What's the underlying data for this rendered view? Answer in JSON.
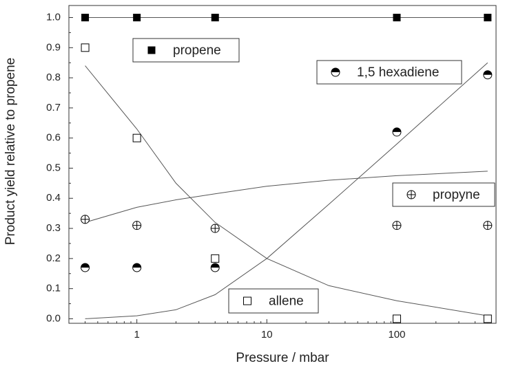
{
  "chart_data": {
    "type": "scatter",
    "xlabel": "Pressure / mbar",
    "ylabel": "Product yield relative to propene",
    "log_x": true,
    "xlim": [
      0.3,
      580
    ],
    "xticks": [
      1,
      10,
      100
    ],
    "ylim": [
      -0.015,
      1.04
    ],
    "yticks": [
      {
        "value": 0,
        "label": "0.0"
      },
      0.1,
      0.2,
      0.3,
      0.4,
      0.5,
      0.6,
      0.7,
      0.8,
      0.9,
      {
        "value": 1,
        "label": "1.0"
      }
    ],
    "minor_ticks": true,
    "x": [
      0.4,
      1,
      4,
      100,
      500
    ],
    "fit_x": [
      0.4,
      1,
      2,
      4,
      10,
      30,
      100,
      500
    ],
    "series": [
      {
        "name": "propene",
        "color": "#000000",
        "marker": "square-filled",
        "values": [
          1,
          1,
          1,
          1,
          1
        ],
        "fit": [
          1,
          1,
          1,
          1,
          1,
          1,
          1,
          1
        ]
      },
      {
        "name": "1,5 hexadiene",
        "color": "#000000",
        "marker": "circle-half",
        "values": [
          0.17,
          0.17,
          0.17,
          0.62,
          0.81
        ],
        "fit": [
          0.0,
          0.01,
          0.03,
          0.08,
          0.2,
          0.38,
          0.58,
          0.85
        ]
      },
      {
        "name": "propyne",
        "color": "#000000",
        "marker": "circle-plus",
        "values": [
          0.33,
          0.31,
          0.3,
          0.31,
          0.31
        ],
        "fit": [
          0.32,
          0.37,
          0.395,
          0.415,
          0.44,
          0.46,
          0.475,
          0.49
        ]
      },
      {
        "name": "allene",
        "color": "#000000",
        "marker": "square-open",
        "values": [
          0.9,
          0.6,
          0.2,
          0,
          0
        ],
        "fit": [
          0.84,
          0.63,
          0.45,
          0.32,
          0.2,
          0.11,
          0.06,
          0.01
        ]
      }
    ]
  }
}
